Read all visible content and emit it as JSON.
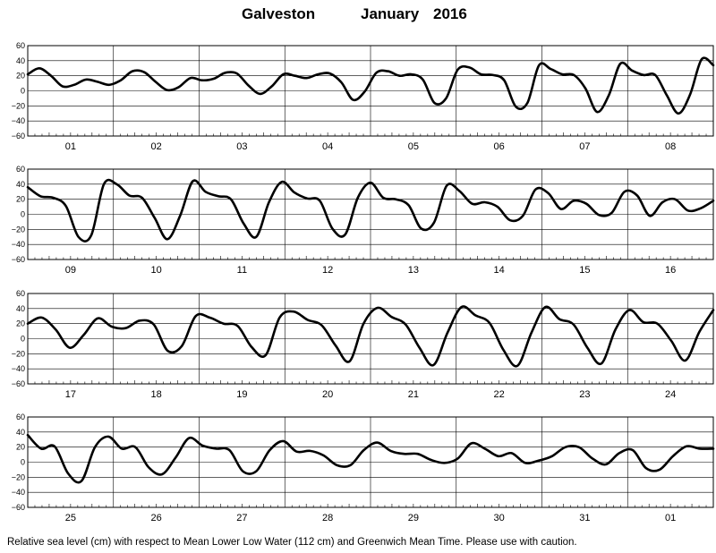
{
  "header": {
    "location": "Galveston",
    "month": "January",
    "year": "2016"
  },
  "footnote": "Relative sea level (cm) with respect to Mean Lower Low Water (112 cm) and Greenwich Mean Time. Please use with caution.",
  "chart_data": {
    "type": "line",
    "title": "Galveston January 2016",
    "ylim": [
      -60,
      60
    ],
    "yticks": [
      -60,
      -40,
      -20,
      0,
      20,
      40,
      60
    ],
    "ytick_labels": [
      "−60",
      "−40",
      "−20",
      "0",
      "20",
      "40",
      "60"
    ],
    "grid": true,
    "color": "#000000",
    "panels": [
      {
        "days": [
          "01",
          "02",
          "03",
          "04",
          "05",
          "06",
          "07",
          "08"
        ],
        "values": [
          22,
          30,
          20,
          6,
          8,
          15,
          12,
          8,
          14,
          26,
          25,
          12,
          1,
          5,
          17,
          14,
          16,
          24,
          23,
          7,
          -4,
          6,
          22,
          20,
          17,
          22,
          23,
          11,
          -12,
          -1,
          24,
          26,
          20,
          22,
          15,
          -16,
          -10,
          28,
          31,
          22,
          21,
          14,
          -21,
          -16,
          34,
          29,
          22,
          21,
          3,
          -28,
          -6,
          36,
          27,
          21,
          21,
          -6,
          -30,
          -5,
          42,
          34
        ]
      },
      {
        "days": [
          "09",
          "10",
          "11",
          "12",
          "13",
          "14",
          "15",
          "16"
        ],
        "values": [
          36,
          24,
          22,
          11,
          -30,
          -28,
          40,
          40,
          25,
          22,
          -5,
          -33,
          -2,
          44,
          30,
          24,
          20,
          -12,
          -30,
          16,
          43,
          29,
          21,
          18,
          -19,
          -27,
          22,
          42,
          22,
          20,
          12,
          -19,
          -11,
          38,
          31,
          14,
          16,
          10,
          -8,
          -2,
          33,
          28,
          7,
          18,
          14,
          -1,
          2,
          30,
          25,
          -2,
          16,
          20,
          5,
          8,
          18
        ]
      },
      {
        "days": [
          "17",
          "18",
          "19",
          "20",
          "21",
          "22",
          "23",
          "24"
        ],
        "values": [
          20,
          28,
          12,
          -12,
          5,
          27,
          16,
          14,
          24,
          19,
          -16,
          -10,
          30,
          28,
          20,
          17,
          -11,
          -22,
          28,
          36,
          25,
          18,
          -9,
          -30,
          20,
          41,
          29,
          19,
          -12,
          -35,
          8,
          42,
          31,
          21,
          -15,
          -36,
          8,
          42,
          26,
          19,
          -12,
          -33,
          12,
          38,
          22,
          20,
          -3,
          -29,
          9,
          38
        ]
      },
      {
        "days": [
          "25",
          "26",
          "27",
          "28",
          "29",
          "30",
          "31",
          "01"
        ],
        "values": [
          36,
          18,
          21,
          -15,
          -25,
          20,
          34,
          18,
          20,
          -7,
          -16,
          6,
          32,
          22,
          18,
          16,
          -12,
          -12,
          16,
          28,
          14,
          15,
          9,
          -4,
          -4,
          16,
          26,
          15,
          11,
          11,
          3,
          -1,
          5,
          25,
          18,
          8,
          12,
          -1,
          2,
          8,
          20,
          20,
          5,
          -3,
          12,
          16,
          -8,
          -10,
          8,
          21,
          18,
          18
        ]
      }
    ]
  }
}
